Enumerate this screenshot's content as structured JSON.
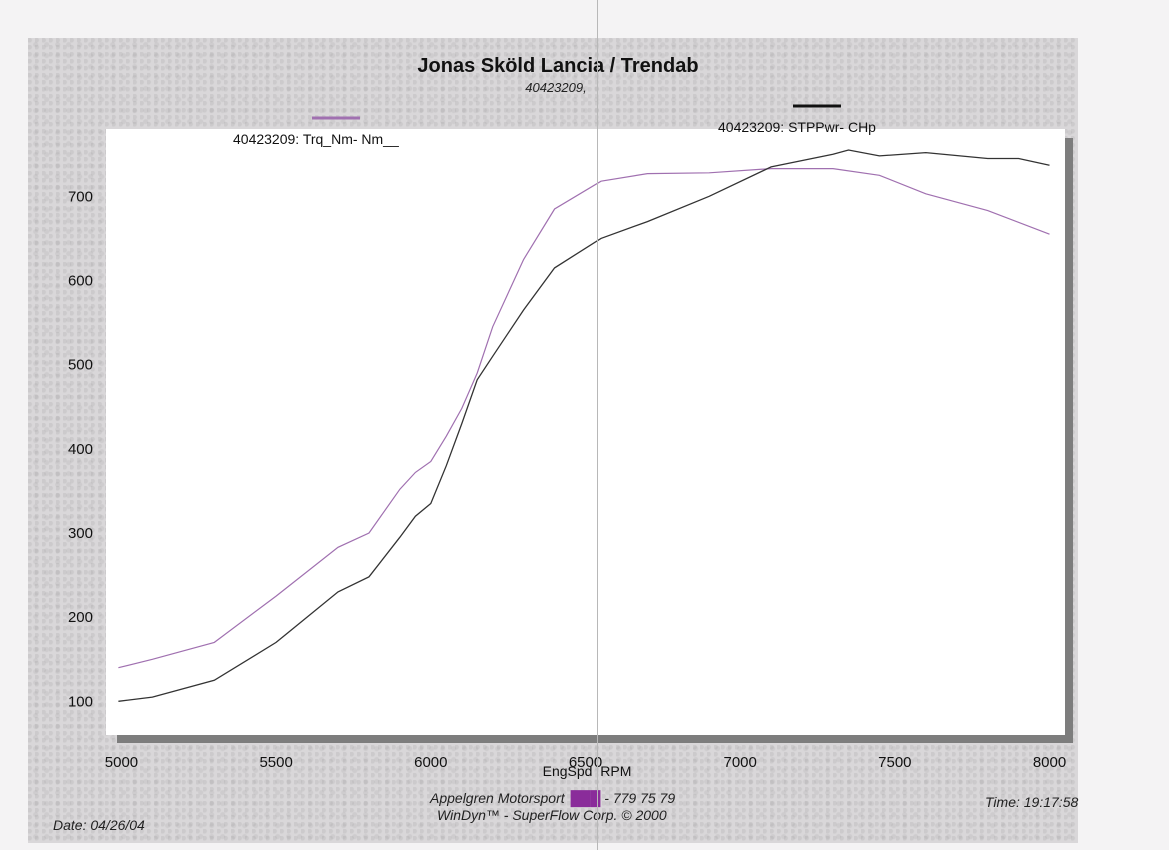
{
  "chart_data": {
    "type": "line",
    "title": "Jonas Sköld Lancia / Trendab",
    "subtitle": "40423209,",
    "xlabel": "EngSpd  RPM",
    "ylabel": "",
    "xlim": [
      4950,
      8050
    ],
    "ylim": [
      60,
      780
    ],
    "x_ticks": [
      5000,
      5500,
      6000,
      6500,
      7000,
      7500,
      8000
    ],
    "y_ticks": [
      100,
      200,
      300,
      400,
      500,
      600,
      700
    ],
    "x_tick_labels": [
      "5000",
      "5500",
      "6000",
      "6500",
      "7000",
      "7500",
      "8000"
    ],
    "y_tick_labels": [
      "100",
      "200",
      "300",
      "400",
      "500",
      "600",
      "700"
    ],
    "grid": false,
    "legend_position": "top",
    "series": [
      {
        "name": "40423209: Trq_Nm-  Nm__",
        "color": "#a070b0",
        "x": [
          4990,
          5100,
          5300,
          5500,
          5700,
          5800,
          5900,
          5950,
          6000,
          6050,
          6100,
          6150,
          6200,
          6300,
          6400,
          6550,
          6700,
          6900,
          7100,
          7300,
          7450,
          7600,
          7800,
          8000
        ],
        "y": [
          140,
          150,
          170,
          225,
          283,
          300,
          352,
          372,
          385,
          415,
          448,
          490,
          545,
          625,
          685,
          718,
          727,
          728,
          733,
          733,
          725,
          703,
          683,
          655
        ]
      },
      {
        "name": "40423209: STPPwr-  CHp",
        "color": "#333333",
        "x": [
          4990,
          5100,
          5300,
          5500,
          5700,
          5800,
          5900,
          5950,
          6000,
          6050,
          6100,
          6150,
          6200,
          6300,
          6400,
          6550,
          6700,
          6900,
          7100,
          7300,
          7350,
          7450,
          7600,
          7800,
          7900,
          8000
        ],
        "y": [
          100,
          105,
          125,
          170,
          230,
          248,
          295,
          320,
          335,
          380,
          430,
          482,
          510,
          565,
          615,
          650,
          670,
          700,
          735,
          750,
          755,
          748,
          752,
          745,
          745,
          737
        ]
      }
    ]
  },
  "footer": {
    "company": "Appelgren Motorsport",
    "phone": " - 779 75 79",
    "software": "WinDyn™ - SuperFlow Corp. © 2000",
    "date": "Date: 04/26/04",
    "time": "Time: 19:17:58"
  }
}
